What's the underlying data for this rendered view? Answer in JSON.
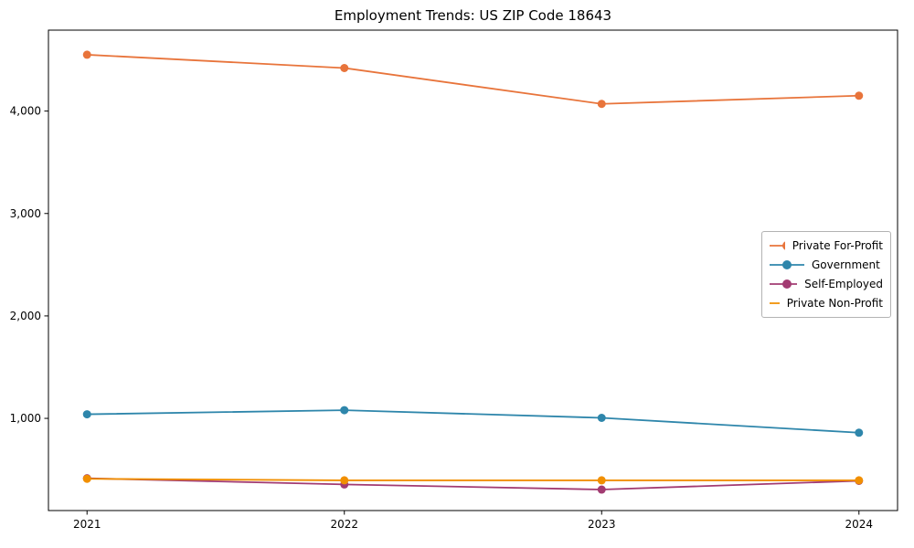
{
  "chart_data": {
    "type": "line",
    "title": "Employment Trends: US ZIP Code 18643",
    "xlabel": "",
    "ylabel": "",
    "x": [
      2021,
      2022,
      2023,
      2024
    ],
    "x_tick_labels": [
      "2021",
      "2022",
      "2023",
      "2024"
    ],
    "y_ticks": [
      {
        "value": 1000,
        "label": "1,000"
      },
      {
        "value": 2000,
        "label": "2,000"
      },
      {
        "value": 3000,
        "label": "3,000"
      },
      {
        "value": 4000,
        "label": "4,000"
      }
    ],
    "xlim": [
      2020.85,
      2024.15
    ],
    "ylim": [
      100,
      4790
    ],
    "grid": false,
    "legend": {
      "position": "right-center",
      "framed": true
    },
    "series": [
      {
        "name": "Private For-Profit",
        "color": "#e8743b",
        "values": [
          4550,
          4420,
          4070,
          4150
        ]
      },
      {
        "name": "Government",
        "color": "#2e86ab",
        "values": [
          1040,
          1080,
          1005,
          860
        ]
      },
      {
        "name": "Self-Employed",
        "color": "#a23b72",
        "values": [
          415,
          355,
          305,
          390
        ]
      },
      {
        "name": "Private Non-Profit",
        "color": "#f18f01",
        "values": [
          410,
          395,
          395,
          395
        ]
      }
    ],
    "axis_color": "#000000",
    "marker": "circle",
    "line_width": 1.8,
    "marker_radius": 4.5
  }
}
